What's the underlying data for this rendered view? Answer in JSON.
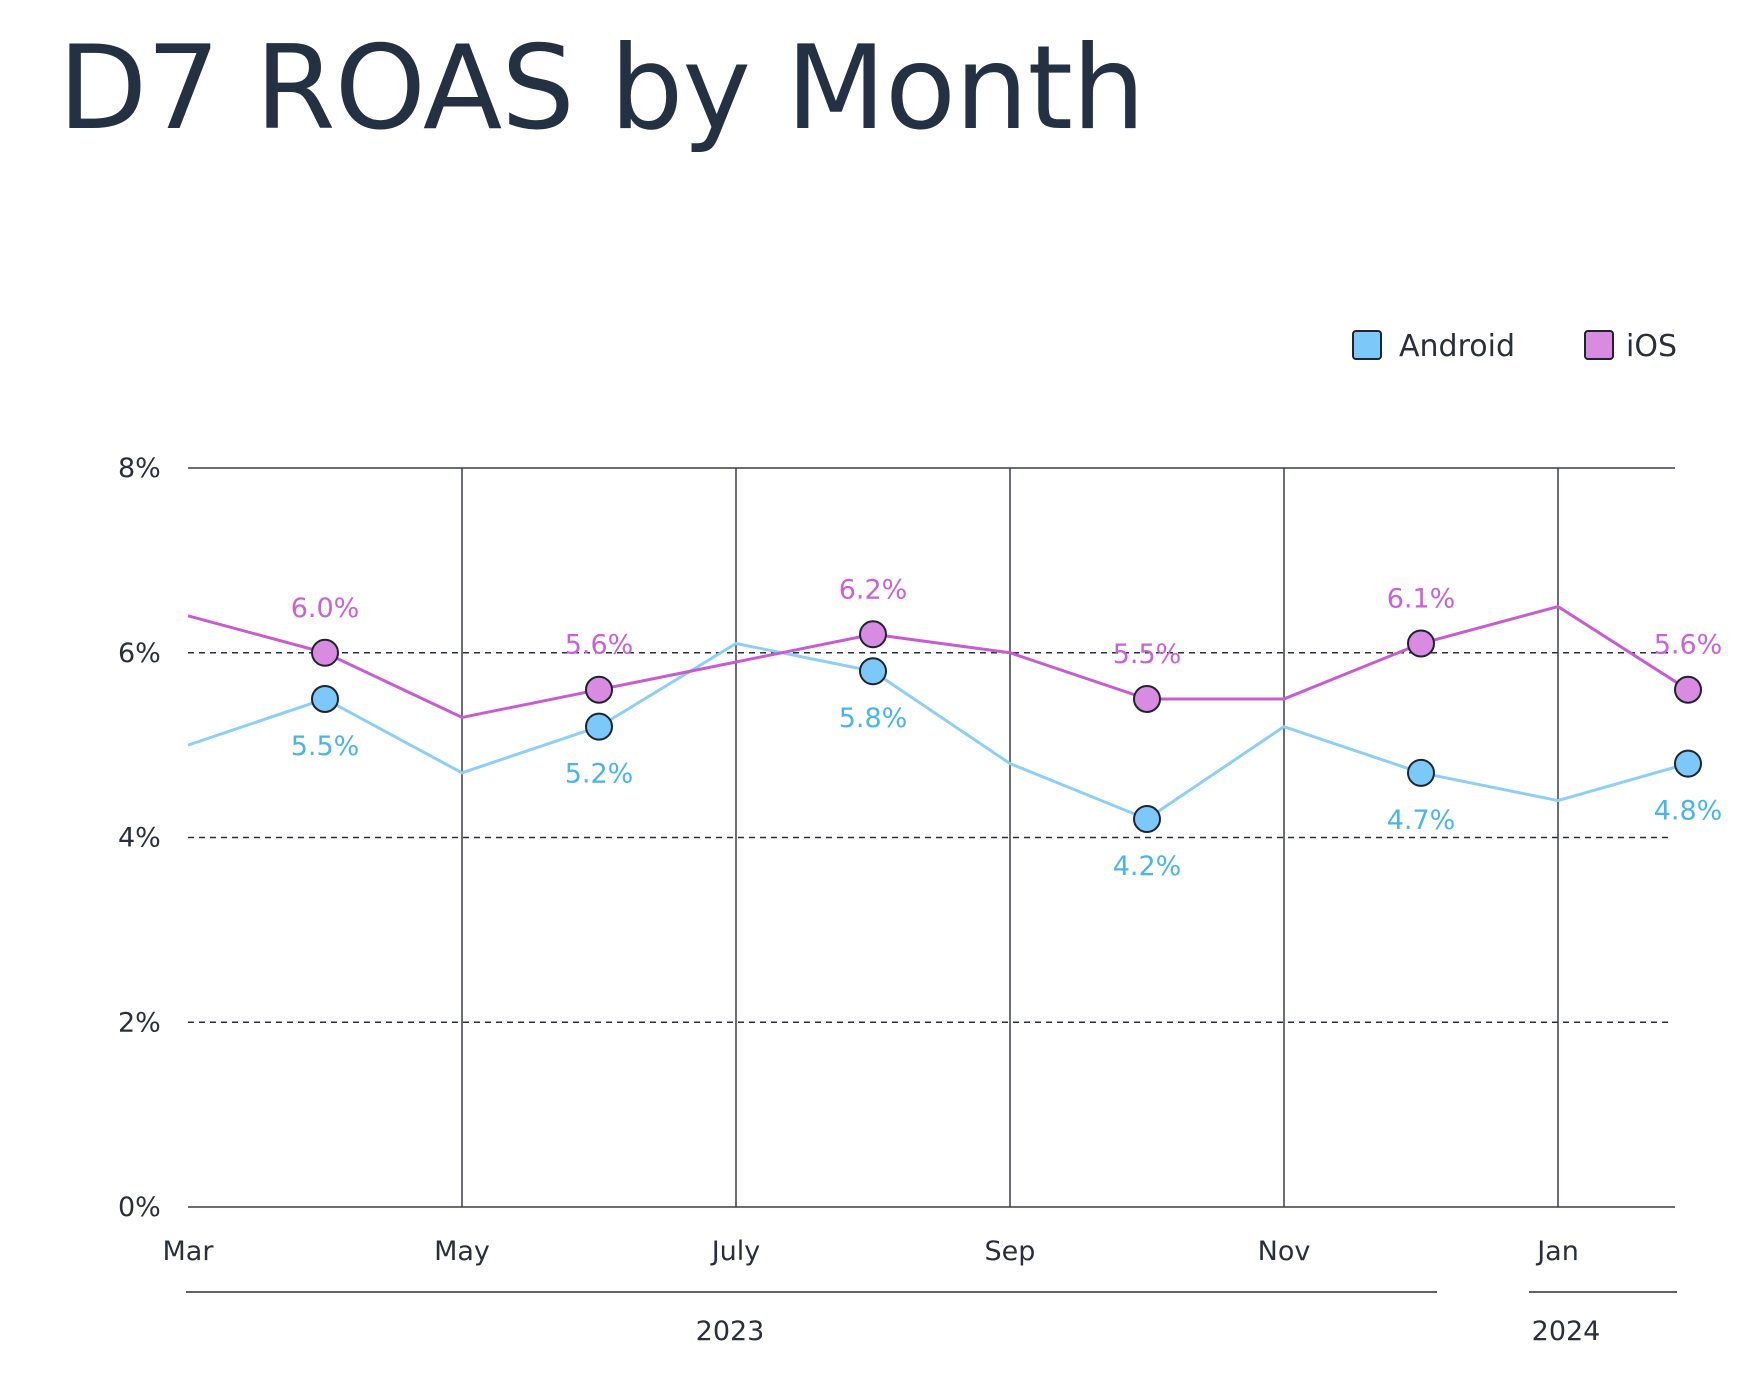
{
  "chart_data": {
    "type": "line",
    "title": "D7 ROAS by Month",
    "xlabel": "",
    "ylabel": "",
    "ylim": [
      0,
      8
    ],
    "y_ticks": [
      0,
      2,
      4,
      6,
      8
    ],
    "y_tick_labels": [
      "0%",
      "2%",
      "4%",
      "6%",
      "8%"
    ],
    "x_range": [
      "2023-03",
      "2024-01"
    ],
    "x_tick_labels": [
      "Mar",
      "May",
      "July",
      "Sep",
      "Nov",
      "Jan"
    ],
    "x_ticks": [
      "2023-03",
      "2023-05",
      "2023-07",
      "2023-09",
      "2023-11",
      "2024-01"
    ],
    "year_labels": [
      "2023",
      "2024"
    ],
    "grid": "vertical solid lines at tick months; horizontal dashed lines at 2%, 4%, 6%",
    "legend_position": "top-right",
    "series": [
      {
        "name": "Android",
        "color": "#8ecff5",
        "marker_color": "#7cc8f8",
        "label_color": "#4ab4ec",
        "points": [
          {
            "x": "2023-03",
            "y": 5.0
          },
          {
            "x": "2023-04",
            "y": 5.5,
            "marker": true,
            "label": "5.5%"
          },
          {
            "x": "2023-05",
            "y": 4.7
          },
          {
            "x": "2023-06",
            "y": 5.2,
            "marker": true,
            "label": "5.2%"
          },
          {
            "x": "2023-07",
            "y": 6.1
          },
          {
            "x": "2023-08",
            "y": 5.8,
            "marker": true,
            "label": "5.8%"
          },
          {
            "x": "2023-09",
            "y": 4.8
          },
          {
            "x": "2023-10",
            "y": 4.2,
            "marker": true,
            "label": "4.2%"
          },
          {
            "x": "2023-11",
            "y": 5.2
          },
          {
            "x": "2023-12",
            "y": 4.7,
            "marker": true,
            "label": "4.7%"
          },
          {
            "x": "2024-01",
            "y": 4.4
          },
          {
            "x": "2024-02",
            "y": 4.8,
            "marker": true,
            "label": "4.8%"
          }
        ]
      },
      {
        "name": "iOS",
        "color": "#c75dd0",
        "marker_color": "#d88be0",
        "label_color": "#c862d6",
        "points": [
          {
            "x": "2023-03",
            "y": 6.4
          },
          {
            "x": "2023-04",
            "y": 6.0,
            "marker": true,
            "label": "6.0%"
          },
          {
            "x": "2023-05",
            "y": 5.3
          },
          {
            "x": "2023-06",
            "y": 5.6,
            "marker": true,
            "label": "5.6%"
          },
          {
            "x": "2023-07",
            "y": 5.9
          },
          {
            "x": "2023-08",
            "y": 6.2,
            "marker": true,
            "label": "6.2%"
          },
          {
            "x": "2023-09",
            "y": 6.0
          },
          {
            "x": "2023-10",
            "y": 5.5,
            "marker": true,
            "label": "5.5%"
          },
          {
            "x": "2023-11",
            "y": 5.5
          },
          {
            "x": "2023-12",
            "y": 6.1,
            "marker": true,
            "label": "6.1%"
          },
          {
            "x": "2024-01",
            "y": 6.5
          },
          {
            "x": "2024-02",
            "y": 5.6,
            "marker": true,
            "label": "5.6%"
          }
        ]
      }
    ]
  }
}
